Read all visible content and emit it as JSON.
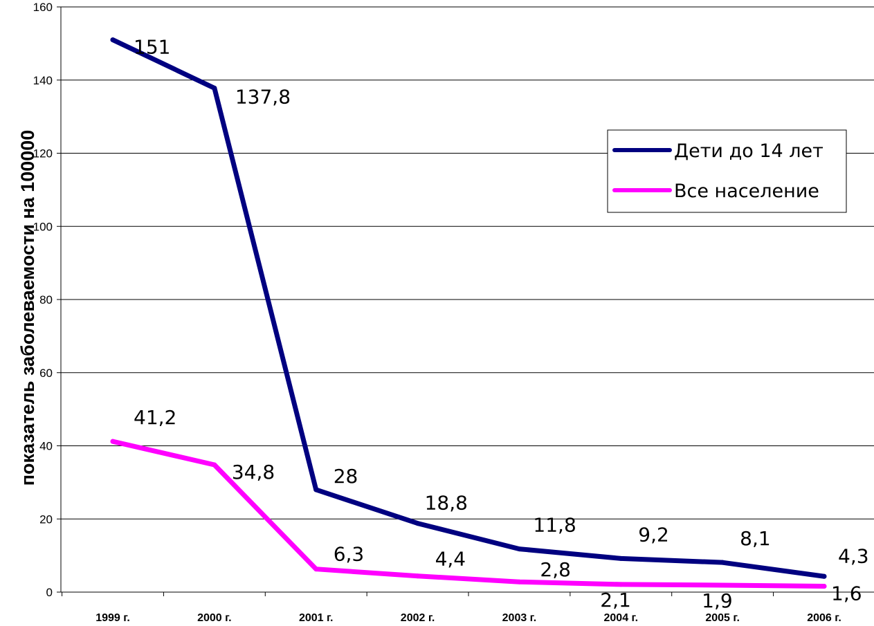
{
  "chart_data": {
    "type": "line",
    "title": "",
    "xlabel": "",
    "ylabel": "показатель заболеваемости на 100000",
    "categories": [
      "1999 г.",
      "2000 г.",
      "2001 г.",
      "2002 г.",
      "2003 г.",
      "2004 г.",
      "2005 г.",
      "2006 г."
    ],
    "y_ticks": [
      "0",
      "20",
      "40",
      "60",
      "80",
      "100",
      "120",
      "140",
      "160"
    ],
    "ylim": [
      0,
      160
    ],
    "grid": true,
    "legend_position": "right",
    "series": [
      {
        "name": "Дети до 14 лет",
        "color": "#000080",
        "values": [
          151,
          137.8,
          28,
          18.8,
          11.8,
          9.2,
          8.1,
          4.3
        ],
        "labels": [
          "151",
          "137,8",
          "28",
          "18,8",
          "11,8",
          "9,2",
          "8,1",
          "4,3"
        ]
      },
      {
        "name": "Все население",
        "color": "#ff00ff",
        "values": [
          41.2,
          34.8,
          6.3,
          4.4,
          2.8,
          2.1,
          1.9,
          1.6
        ],
        "labels": [
          "41,2",
          "34,8",
          "6,3",
          "4,4",
          "2,8",
          "2,1",
          "1,9",
          "1,6"
        ]
      }
    ]
  }
}
